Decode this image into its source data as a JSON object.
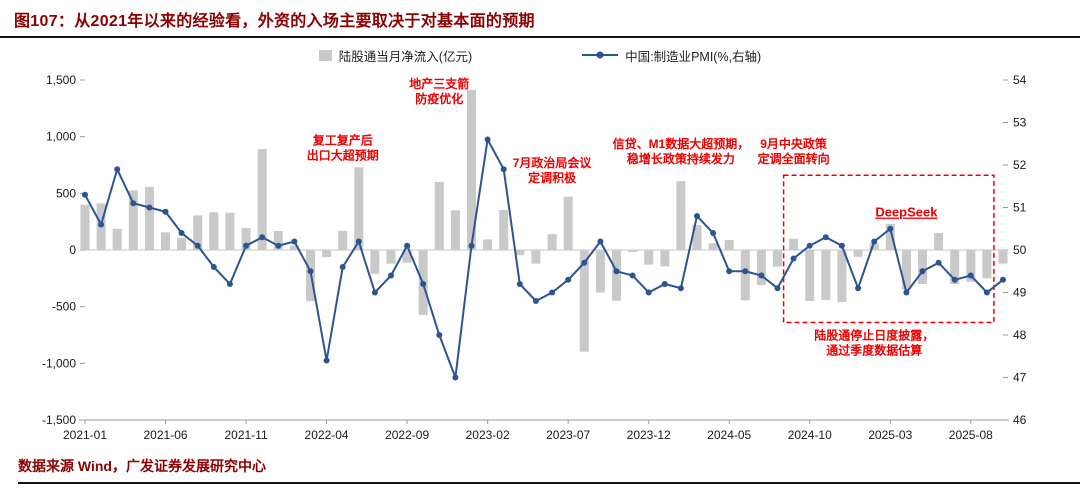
{
  "header": {
    "title": "图107：从2021年以来的经验看，外资的入场主要取决于对基本面的预期"
  },
  "legend": {
    "bars": "陆股通当月净流入(亿元)",
    "line": "中国:制造业PMI(%,右轴)"
  },
  "footer": {
    "source": "数据来源 Wind，广发证券发展研究中心"
  },
  "theme": {
    "title_color": "#8b0000",
    "bar_color": "#c9c9c9",
    "line_color": "#2b5592",
    "annotation_color": "#ee0000"
  },
  "chart_data": {
    "type": "bar",
    "title": "图107：从2021年以来的经验看，外资的入场主要取决于对基本面的预期",
    "xlabel": "",
    "ylabel_left": "陆股通当月净流入(亿元)",
    "ylabel_right": "中国:制造业PMI(%)",
    "x": [
      "2021-01",
      "2021-02",
      "2021-03",
      "2021-04",
      "2021-05",
      "2021-06",
      "2021-07",
      "2021-08",
      "2021-09",
      "2021-10",
      "2021-11",
      "2021-12",
      "2022-01",
      "2022-02",
      "2022-03",
      "2022-04",
      "2022-05",
      "2022-06",
      "2022-07",
      "2022-08",
      "2022-09",
      "2022-10",
      "2022-11",
      "2022-12",
      "2023-01",
      "2023-02",
      "2023-03",
      "2023-04",
      "2023-05",
      "2023-06",
      "2023-07",
      "2023-08",
      "2023-09",
      "2023-10",
      "2023-11",
      "2023-12",
      "2024-01",
      "2024-02",
      "2024-03",
      "2024-04",
      "2024-05",
      "2024-06",
      "2024-07",
      "2024-08",
      "2024-09",
      "2024-10",
      "2024-11",
      "2024-12",
      "2025-01",
      "2025-02",
      "2025-03",
      "2025-04",
      "2025-05",
      "2025-06",
      "2025-07",
      "2025-08",
      "2025-09",
      "2025-10"
    ],
    "x_tick_every": 5,
    "x_ticks": [
      "2021-01",
      "2021-06",
      "2021-11",
      "2022-04",
      "2022-09",
      "2023-02",
      "2023-07",
      "2023-12",
      "2024-05",
      "2024-10",
      "2025-03",
      "2025-08"
    ],
    "left_axis": {
      "min": -1500,
      "max": 1500,
      "ticks": [
        -1500,
        -1000,
        -500,
        0,
        500,
        1000,
        1500
      ]
    },
    "right_axis": {
      "min": 46,
      "max": 54,
      "ticks": [
        46,
        47,
        48,
        49,
        50,
        51,
        52,
        53,
        54
      ]
    },
    "series": [
      {
        "name": "陆股通当月净流入(亿元)",
        "kind": "bar",
        "axis": "left",
        "color": "#c9c9c9",
        "values": [
          400,
          412,
          187,
          526,
          557,
          155,
          108,
          305,
          333,
          328,
          195,
          890,
          168,
          40,
          -451,
          -63,
          169,
          730,
          -210,
          -121,
          -112,
          -573,
          601,
          350,
          1413,
          93,
          354,
          -46,
          -121,
          140,
          470,
          -897,
          -375,
          -448,
          -18,
          -129,
          -145,
          607,
          220,
          60,
          88,
          -444,
          -310,
          -147,
          100,
          -450,
          -440,
          -460,
          -60,
          60,
          230,
          -350,
          -300,
          150,
          -300,
          -280,
          -250,
          -120
        ]
      },
      {
        "name": "中国:制造业PMI(%,右轴)",
        "kind": "line",
        "axis": "right",
        "color": "#2b5592",
        "values": [
          51.3,
          50.6,
          51.9,
          51.1,
          51.0,
          50.9,
          50.4,
          50.1,
          49.6,
          49.2,
          50.1,
          50.3,
          50.1,
          50.2,
          49.5,
          47.4,
          49.6,
          50.2,
          49.0,
          49.4,
          50.1,
          49.2,
          48.0,
          47.0,
          50.1,
          52.6,
          51.9,
          49.2,
          48.8,
          49.0,
          49.3,
          49.7,
          50.2,
          49.5,
          49.4,
          49.0,
          49.2,
          49.1,
          50.8,
          50.4,
          49.5,
          49.5,
          49.4,
          49.1,
          49.8,
          50.1,
          50.3,
          50.1,
          49.1,
          50.2,
          50.5,
          49.0,
          49.5,
          49.7,
          49.3,
          49.4,
          49.0,
          49.3
        ]
      }
    ],
    "annotation_color": "#ee0000",
    "annotations": [
      {
        "name": "reopening-exports",
        "lines": [
          "复工复产后",
          "出口大超预期"
        ],
        "month": "2022-05",
        "value": 900
      },
      {
        "name": "property-three-arrows",
        "lines": [
          "地产三支箭",
          "防疫优化"
        ],
        "month": "2022-11",
        "value": 1400
      },
      {
        "name": "july-politburo",
        "lines": [
          "7月政治局会议",
          "定调积极"
        ],
        "month": "2023-06",
        "value": 700
      },
      {
        "name": "credit-m1-beat",
        "lines": [
          "信贷、M1数据大超预期，",
          "稳增长政策持续发力"
        ],
        "month": "2024-02",
        "value": 870
      },
      {
        "name": "september-policy-shift",
        "lines": [
          "9月中央政策",
          "定调全面转向"
        ],
        "month": "2024-09",
        "value": 870
      },
      {
        "name": "deepseek",
        "lines": [
          "DeepSeek"
        ],
        "month": "2025-04",
        "value": 330,
        "underline": true
      },
      {
        "name": "disclosure-note",
        "lines": [
          "陆股通停止日度披露，",
          "通过季度数据估算"
        ],
        "month": "2025-02",
        "value": -820
      }
    ],
    "dashed_box": {
      "from_month": "2024-09",
      "to_month": "2025-09",
      "top_value": 660,
      "bottom_value": -640
    },
    "grid": "zero-line-only",
    "legend_position": "top-center"
  }
}
